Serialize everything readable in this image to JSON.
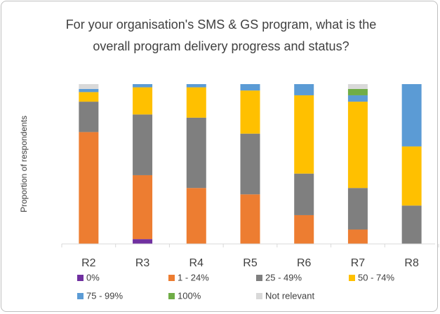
{
  "chart_data": {
    "type": "stacked_bar",
    "title": "For your organisation's SMS & GS program, what is the overall program delivery progress and status?",
    "y_label": "Proportion of respondents",
    "categories": [
      "R2",
      "R3",
      "R4",
      "R5",
      "R6",
      "R7",
      "R8"
    ],
    "ylim": [
      0,
      100
    ],
    "series": [
      {
        "name": "0%",
        "color": "#7030a0",
        "values": [
          0,
          3,
          0,
          0,
          0,
          0,
          0
        ]
      },
      {
        "name": "1 - 24%",
        "color": "#ed7d31",
        "values": [
          70,
          40,
          35,
          31,
          18,
          9,
          0
        ]
      },
      {
        "name": "25 - 49%",
        "color": "#7f7f7f",
        "values": [
          19,
          38,
          44,
          38,
          26,
          26,
          24
        ]
      },
      {
        "name": "50 - 74%",
        "color": "#ffc000",
        "values": [
          6,
          17,
          19,
          27,
          49,
          54,
          37
        ]
      },
      {
        "name": "75 - 99%",
        "color": "#5b9bd5",
        "values": [
          2,
          2,
          2,
          4,
          7,
          4,
          39
        ]
      },
      {
        "name": "100%",
        "color": "#70ad47",
        "values": [
          0,
          0,
          0,
          0,
          0,
          4,
          0
        ]
      },
      {
        "name": "Not relevant",
        "color": "#d9d9d9",
        "values": [
          3,
          0,
          0,
          0,
          0,
          3,
          0
        ]
      }
    ],
    "legend": "bottom"
  }
}
